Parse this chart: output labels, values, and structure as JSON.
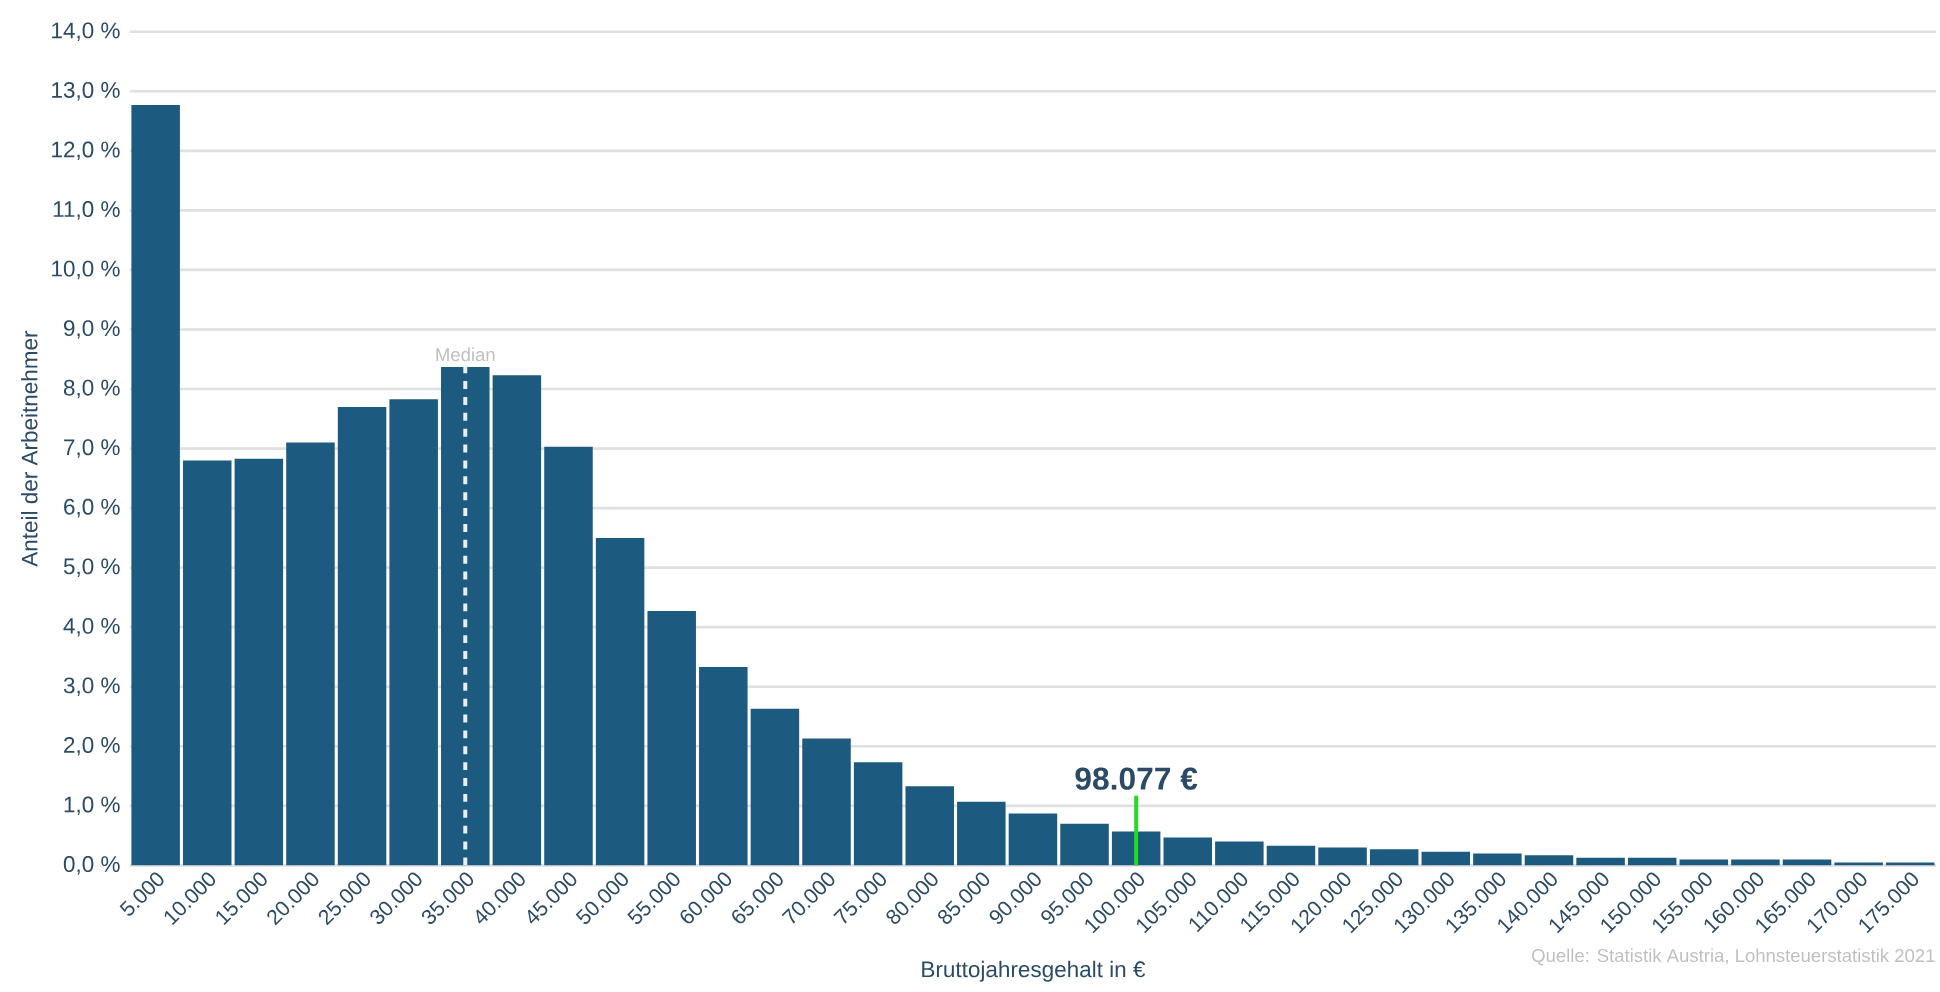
{
  "chart_data": {
    "type": "bar",
    "xlabel": "Bruttojahresgehalt in €",
    "ylabel": "Anteil der Arbeitnehmer",
    "color": "#1c5a80",
    "categories": [
      "5.000",
      "10.000",
      "15.000",
      "20.000",
      "25.000",
      "30.000",
      "35.000",
      "40.000",
      "45.000",
      "50.000",
      "55.000",
      "60.000",
      "65.000",
      "70.000",
      "75.000",
      "80.000",
      "85.000",
      "90.000",
      "95.000",
      "100.000",
      "105.000",
      "110.000",
      "115.000",
      "120.000",
      "125.000",
      "130.000",
      "135.000",
      "140.000",
      "145.000",
      "150.000",
      "155.000",
      "160.000",
      "165.000",
      "170.000",
      "175.000"
    ],
    "values": [
      12.77,
      6.8,
      6.83,
      7.1,
      7.7,
      7.83,
      8.37,
      8.23,
      7.03,
      5.5,
      4.27,
      3.33,
      2.63,
      2.13,
      1.73,
      1.33,
      1.07,
      0.87,
      0.7,
      0.57,
      0.47,
      0.4,
      0.33,
      0.3,
      0.27,
      0.23,
      0.2,
      0.17,
      0.13,
      0.13,
      0.1,
      0.1,
      0.1,
      0.05,
      0.05
    ],
    "ylim": [
      0,
      14
    ],
    "yticks": [
      {
        "value": 0,
        "label": "0,0 %"
      },
      {
        "value": 1,
        "label": "1,0 %"
      },
      {
        "value": 2,
        "label": "2,0 %"
      },
      {
        "value": 3,
        "label": "3,0 %"
      },
      {
        "value": 4,
        "label": "4,0 %"
      },
      {
        "value": 5,
        "label": "5,0 %"
      },
      {
        "value": 6,
        "label": "6,0 %"
      },
      {
        "value": 7,
        "label": "7,0 %"
      },
      {
        "value": 8,
        "label": "8,0 %"
      },
      {
        "value": 9,
        "label": "9,0 %"
      },
      {
        "value": 10,
        "label": "10,0 %"
      },
      {
        "value": 11,
        "label": "11,0 %"
      },
      {
        "value": 12,
        "label": "12,0 %"
      },
      {
        "value": 13,
        "label": "13,0 %"
      },
      {
        "value": 14,
        "label": "14,0 %"
      }
    ],
    "grid": "y",
    "ref_lines": [
      {
        "axis": "x",
        "value": "35.000",
        "label": "Median",
        "color": "#e8eef3",
        "line_style": "dashed"
      },
      {
        "axis": "x",
        "value": "100.000",
        "label": "98.077 €",
        "color": "#22dd22",
        "line_style": "solid"
      }
    ],
    "annotations": [
      "Quelle: Statistik Austria, Lohnsteuerstatistik 2021"
    ]
  }
}
